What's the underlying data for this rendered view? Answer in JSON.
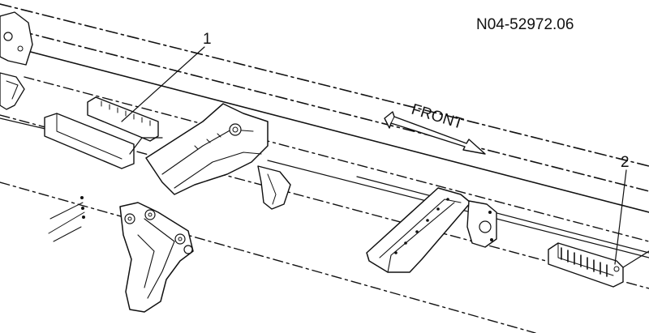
{
  "drawing": {
    "figure_number": "N04-52972.06",
    "direction_label": "FRONT",
    "callouts": [
      {
        "id": "1",
        "text": "1"
      },
      {
        "id": "2",
        "text": "2"
      }
    ]
  },
  "colors": {
    "line": "#111111",
    "background": "#ffffff"
  }
}
